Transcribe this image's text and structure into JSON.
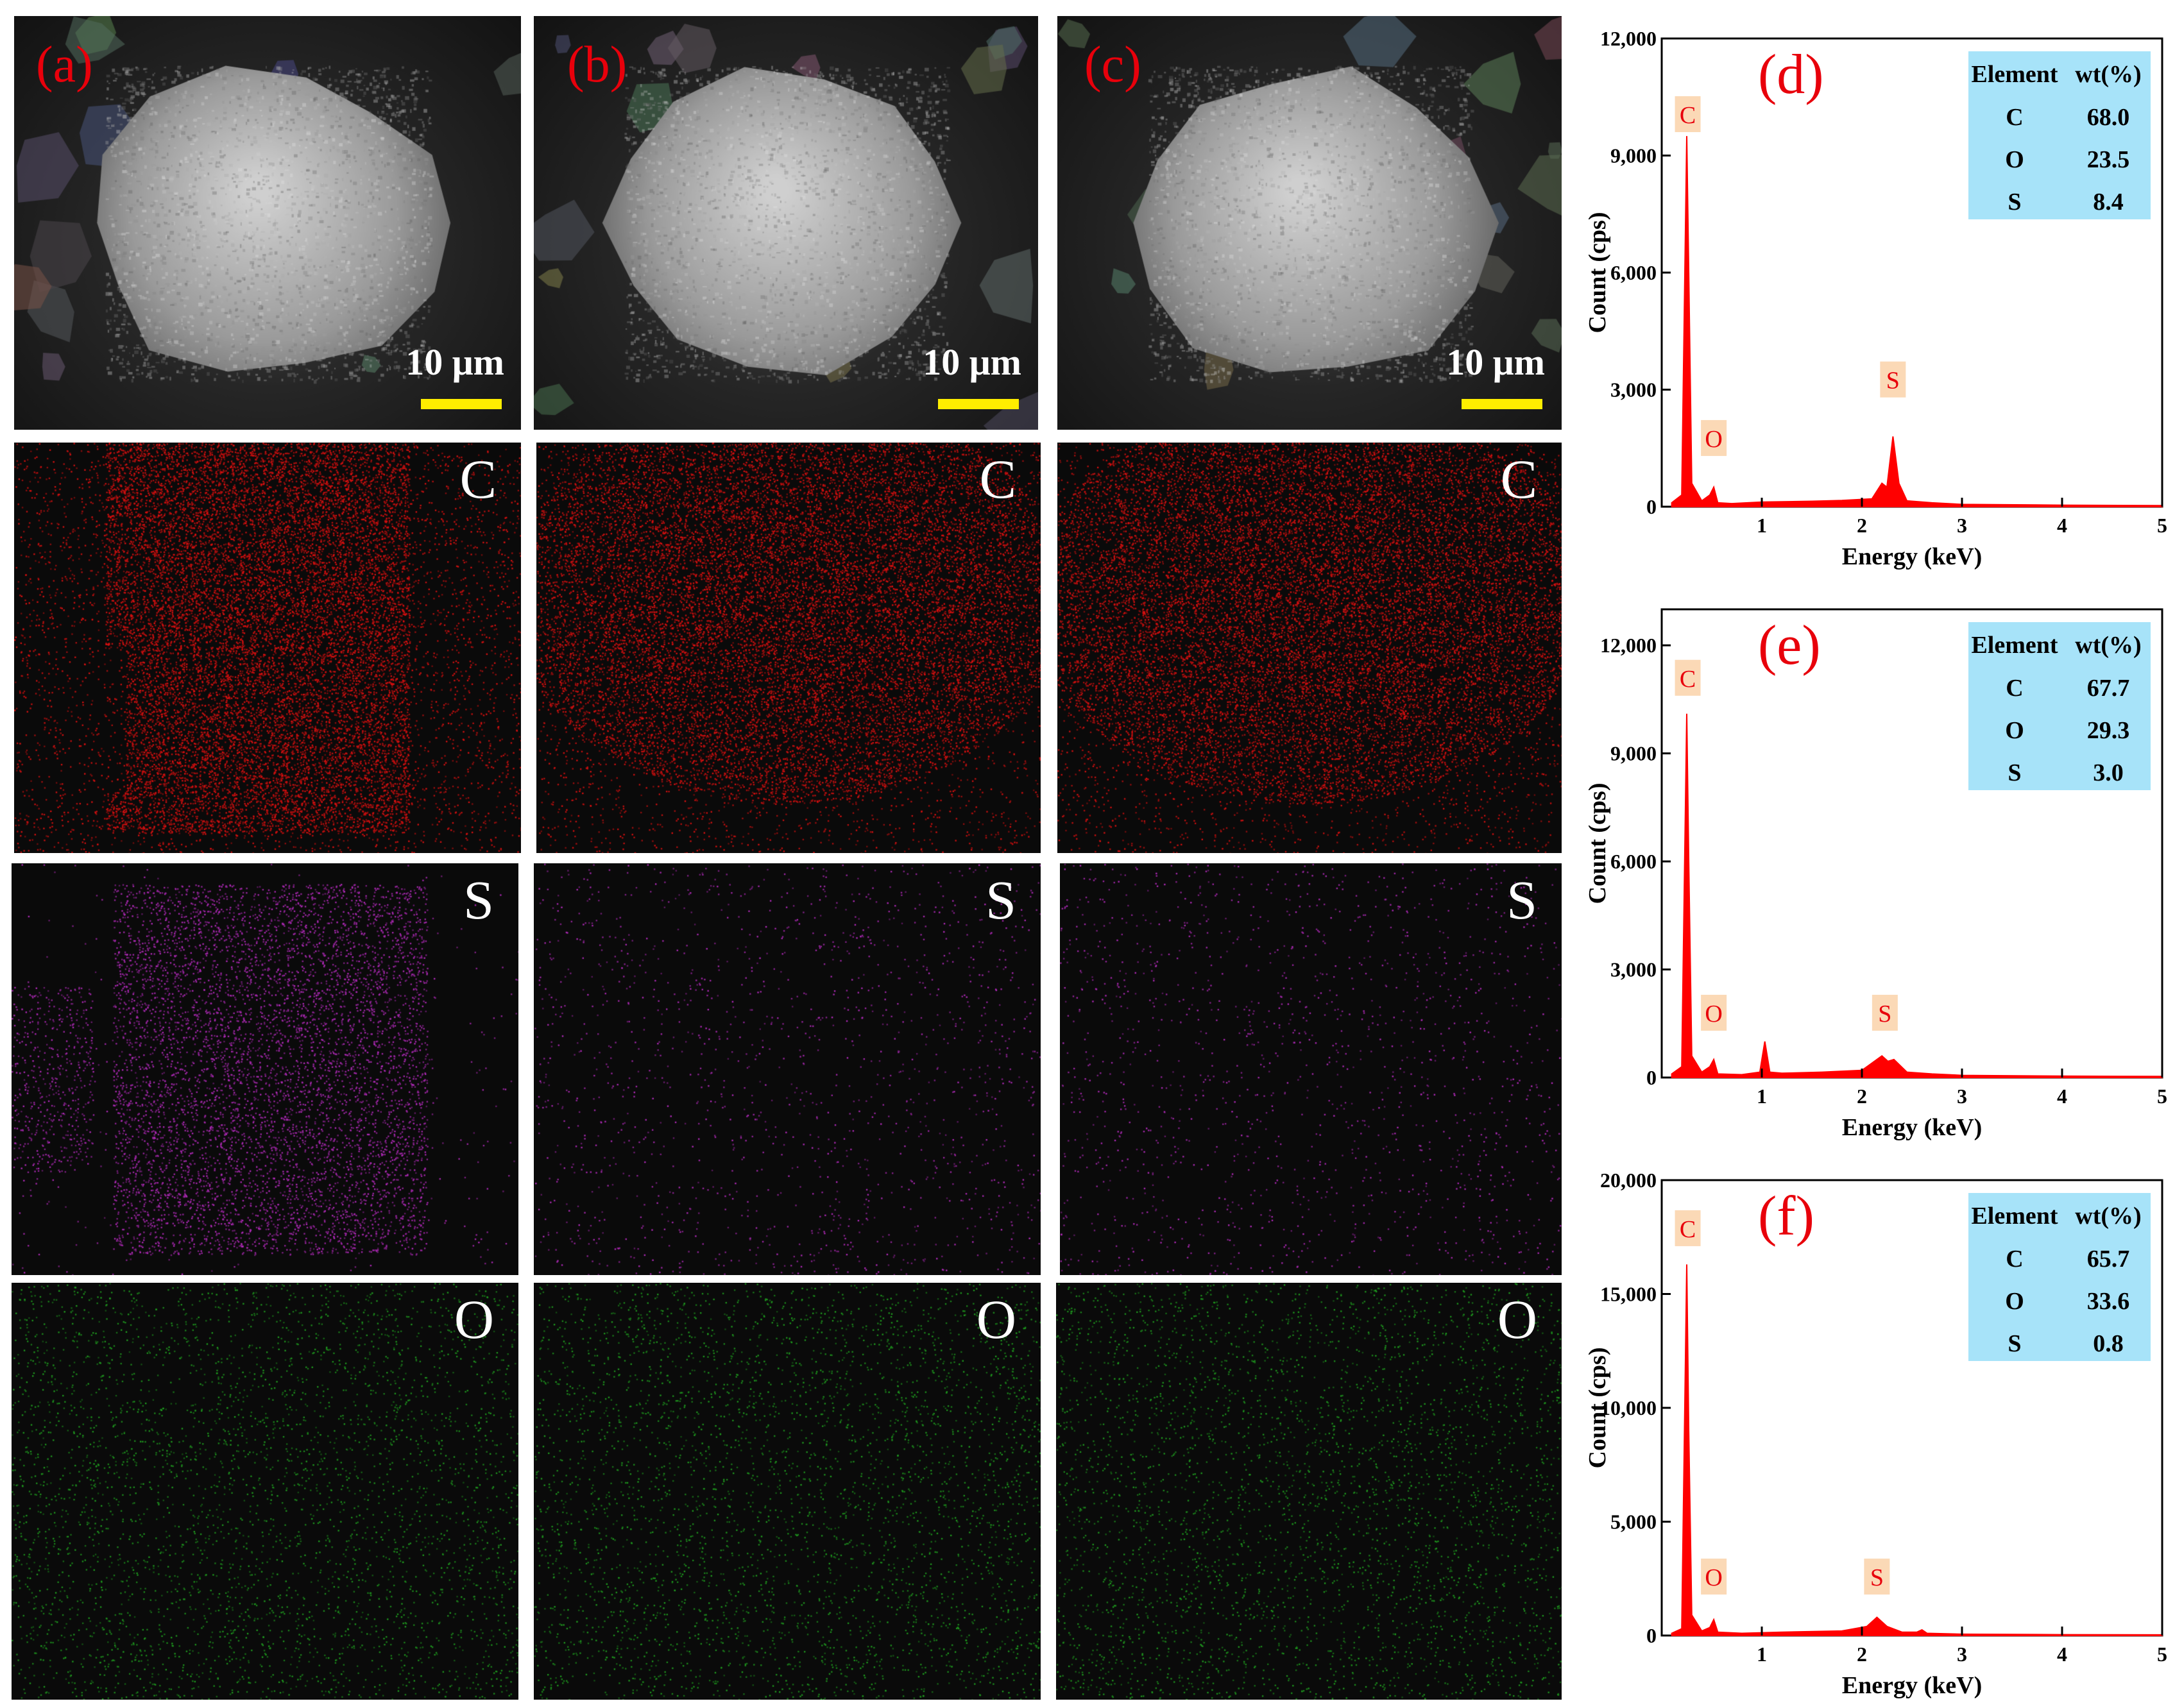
{
  "panels": {
    "labels": [
      "(a)",
      "(b)",
      "(c)"
    ],
    "scale_bar_text": "10 μm",
    "map_elements": [
      "C",
      "S",
      "O"
    ],
    "map_colors": {
      "C": "#d81010",
      "S": "#b02ab8",
      "O": "#1f9a1f"
    }
  },
  "chart_data": [
    {
      "label": "(d)",
      "type": "line",
      "xlabel": "Energy (keV)",
      "ylabel": "Count (cps)",
      "xlim": [
        0,
        5
      ],
      "ylim": [
        0,
        12000
      ],
      "xticks": [
        "1",
        "2",
        "3",
        "4",
        "5"
      ],
      "yticks": [
        "0",
        "3,000",
        "6,000",
        "9,000",
        "12,000"
      ],
      "x": [
        0.1,
        0.2,
        0.25,
        0.27,
        0.3,
        0.4,
        0.48,
        0.52,
        0.56,
        0.7,
        1.0,
        1.5,
        1.8,
        2.1,
        2.2,
        2.25,
        2.31,
        2.37,
        2.45,
        2.7,
        3.0,
        4.0,
        5.0
      ],
      "y": [
        100,
        300,
        9500,
        6000,
        600,
        150,
        300,
        500,
        100,
        80,
        120,
        140,
        160,
        200,
        600,
        500,
        1800,
        600,
        150,
        100,
        60,
        40,
        30
      ],
      "peak_labels": [
        {
          "text": "C",
          "x": 0.26,
          "y": 9600
        },
        {
          "text": "O",
          "x": 0.52,
          "y": 1300
        },
        {
          "text": "S",
          "x": 2.31,
          "y": 2800
        }
      ],
      "table": {
        "headers": [
          "Element",
          "wt(%)"
        ],
        "rows": [
          [
            "C",
            "68.0"
          ],
          [
            "O",
            "23.5"
          ],
          [
            "S",
            "8.4"
          ]
        ]
      }
    },
    {
      "label": "(e)",
      "type": "line",
      "xlabel": "Energy (keV)",
      "ylabel": "Count (cps)",
      "xlim": [
        0,
        5
      ],
      "ylim": [
        0,
        13000
      ],
      "xticks": [
        "1",
        "2",
        "3",
        "4",
        "5"
      ],
      "yticks": [
        "0",
        "3,000",
        "6,000",
        "9,000",
        "12,000"
      ],
      "x": [
        0.1,
        0.2,
        0.25,
        0.27,
        0.3,
        0.4,
        0.48,
        0.52,
        0.56,
        0.8,
        0.98,
        1.03,
        1.08,
        1.2,
        1.6,
        2.0,
        2.1,
        2.2,
        2.26,
        2.32,
        2.45,
        2.7,
        3.0,
        4.0,
        5.0
      ],
      "y": [
        100,
        300,
        10100,
        6000,
        600,
        150,
        300,
        500,
        100,
        80,
        150,
        1000,
        150,
        120,
        150,
        200,
        400,
        600,
        450,
        500,
        150,
        100,
        60,
        40,
        30
      ],
      "peak_labels": [
        {
          "text": "C",
          "x": 0.26,
          "y": 10600
        },
        {
          "text": "O",
          "x": 0.52,
          "y": 1300
        },
        {
          "text": "S",
          "x": 2.23,
          "y": 1300
        }
      ],
      "table": {
        "headers": [
          "Element",
          "wt(%)"
        ],
        "rows": [
          [
            "C",
            "67.7"
          ],
          [
            "O",
            "29.3"
          ],
          [
            "S",
            "3.0"
          ]
        ]
      }
    },
    {
      "label": "(f)",
      "type": "line",
      "xlabel": "Energy (keV)",
      "ylabel": "Count (cps)",
      "xlim": [
        0,
        5
      ],
      "ylim": [
        0,
        20000
      ],
      "xticks": [
        "1",
        "2",
        "3",
        "4",
        "5"
      ],
      "yticks": [
        "0",
        "5,000",
        "10,000",
        "15,000",
        "20,000"
      ],
      "x": [
        0.1,
        0.2,
        0.25,
        0.27,
        0.3,
        0.4,
        0.48,
        0.52,
        0.56,
        0.8,
        1.2,
        1.8,
        2.05,
        2.15,
        2.25,
        2.4,
        2.55,
        2.6,
        2.65,
        3.0,
        4.0,
        5.0
      ],
      "y": [
        100,
        300,
        16300,
        9000,
        900,
        200,
        350,
        700,
        150,
        100,
        150,
        200,
        400,
        800,
        400,
        150,
        150,
        250,
        100,
        60,
        40,
        30
      ],
      "peak_labels": [
        {
          "text": "C",
          "x": 0.26,
          "y": 17100
        },
        {
          "text": "O",
          "x": 0.52,
          "y": 1800
        },
        {
          "text": "S",
          "x": 2.15,
          "y": 1800
        }
      ],
      "table": {
        "headers": [
          "Element",
          "wt(%)"
        ],
        "rows": [
          [
            "C",
            "65.7"
          ],
          [
            "O",
            "33.6"
          ],
          [
            "S",
            "0.8"
          ]
        ]
      }
    }
  ]
}
